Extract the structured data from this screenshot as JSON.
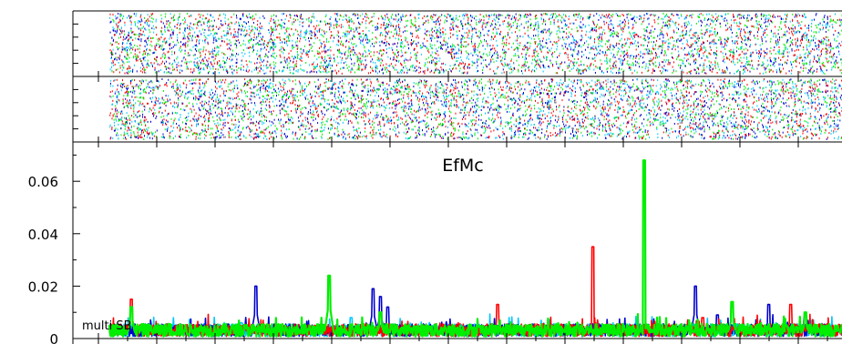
{
  "colors": {
    "red": "#ff0000",
    "blue": "#0000cc",
    "cyan": "#00c8ff",
    "green": "#00ee00",
    "axis": "#000000"
  },
  "chart_data": [
    {
      "type": "scatter",
      "title": "",
      "panels": 2,
      "series_colors": [
        "#ff0000",
        "#0000cc",
        "#00c8ff",
        "#00ee00"
      ],
      "grid": false,
      "note": ""
    },
    {
      "type": "line",
      "title": "EfMc",
      "label": "multi SB",
      "xlabel": "",
      "ylabel": "",
      "ylim": [
        0,
        0.075
      ],
      "yticks": [
        0,
        0.02,
        0.04,
        0.06
      ],
      "ytick_labels": [
        "0",
        "0.02",
        "0.04",
        "0.06"
      ],
      "xlim": [
        0,
        1
      ],
      "baseline": 0.004,
      "series": [
        {
          "color": "red",
          "peaks": [
            [
              0.03,
              0.015
            ],
            [
              0.53,
              0.013
            ],
            [
              0.66,
              0.035
            ],
            [
              0.81,
              0.008
            ],
            [
              0.93,
              0.013
            ]
          ]
        },
        {
          "color": "blue",
          "peaks": [
            [
              0.2,
              0.02
            ],
            [
              0.36,
              0.019
            ],
            [
              0.37,
              0.016
            ],
            [
              0.38,
              0.012
            ],
            [
              0.8,
              0.02
            ],
            [
              0.83,
              0.009
            ],
            [
              0.9,
              0.013
            ]
          ]
        },
        {
          "color": "cyan",
          "peaks": [
            [
              0.18,
              0.006
            ],
            [
              0.33,
              0.008
            ],
            [
              0.96,
              0.007
            ]
          ]
        },
        {
          "color": "green",
          "peaks": [
            [
              0.03,
              0.012
            ],
            [
              0.3,
              0.024
            ],
            [
              0.37,
              0.01
            ],
            [
              0.73,
              0.068
            ],
            [
              0.85,
              0.014
            ],
            [
              0.95,
              0.01
            ]
          ]
        }
      ]
    }
  ]
}
